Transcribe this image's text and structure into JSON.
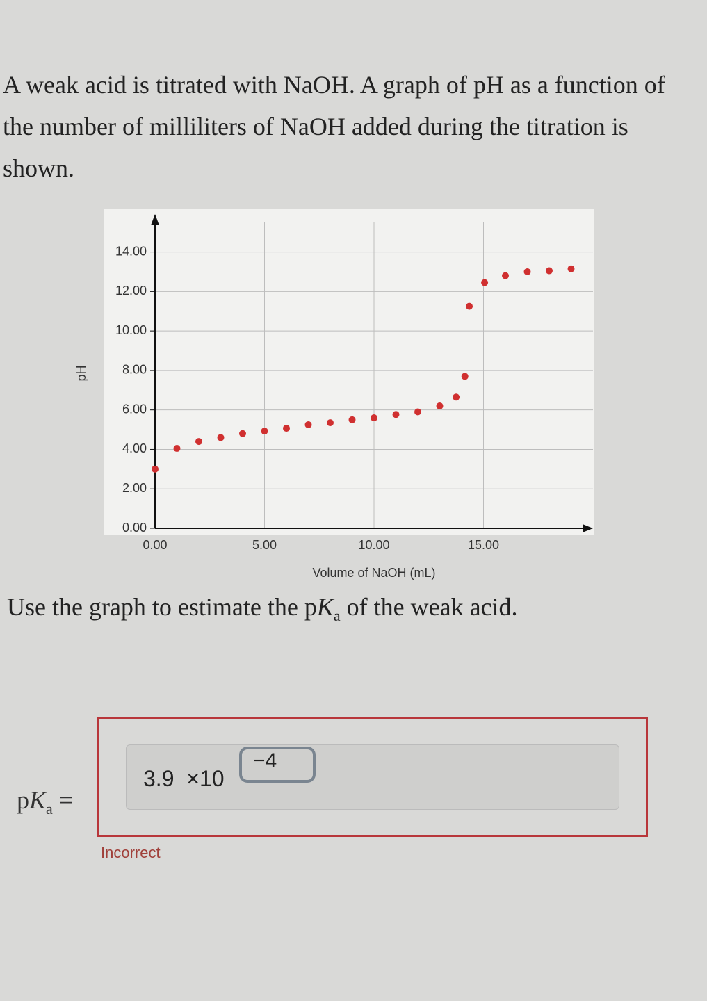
{
  "question": {
    "intro": "A weak acid is titrated with NaOH. A graph of pH as a function of the number of milliliters of NaOH added during the titration is shown.",
    "prompt_before": "Use the graph to estimate the p",
    "prompt_k": "K",
    "prompt_sub": "a",
    "prompt_after": " of the weak acid."
  },
  "chart_data": {
    "type": "scatter",
    "x_label": "Volume of NaOH (mL)",
    "y_label": "pH",
    "x": [
      0,
      1,
      2,
      3,
      4,
      5,
      6,
      7,
      8,
      9,
      10,
      11,
      12,
      13,
      13.75,
      14.15,
      14.35,
      15.05,
      16,
      17,
      18,
      19
    ],
    "series": [
      {
        "color": "#d03030",
        "values": [
          3.0,
          4.05,
          4.4,
          4.6,
          4.8,
          4.93,
          5.07,
          5.25,
          5.35,
          5.5,
          5.6,
          5.77,
          5.9,
          6.2,
          6.65,
          7.7,
          11.25,
          12.45,
          12.8,
          13.0,
          13.05,
          13.15
        ]
      }
    ],
    "xlim": [
      0,
      20
    ],
    "ylim": [
      0,
      15.5
    ],
    "xticks": [
      {
        "value": 0,
        "label": "0.00"
      },
      {
        "value": 5,
        "label": "5.00"
      },
      {
        "value": 10,
        "label": "10.00"
      },
      {
        "value": 15,
        "label": "15.00"
      }
    ],
    "yticks": [
      {
        "value": 0,
        "label": "0.00"
      },
      {
        "value": 2,
        "label": "2.00"
      },
      {
        "value": 4,
        "label": "4.00"
      },
      {
        "value": 6,
        "label": "6.00"
      },
      {
        "value": 8,
        "label": "8.00"
      },
      {
        "value": 10,
        "label": "10.00"
      },
      {
        "value": 12,
        "label": "12.00"
      },
      {
        "value": 14,
        "label": "14.00"
      }
    ],
    "grid": true
  },
  "answer": {
    "label_p": "p",
    "label_k": "K",
    "label_sub": "a",
    "label_eq": "=",
    "mantissa": "3.9",
    "times": "×10",
    "exponent": "−4",
    "feedback": "Incorrect"
  }
}
